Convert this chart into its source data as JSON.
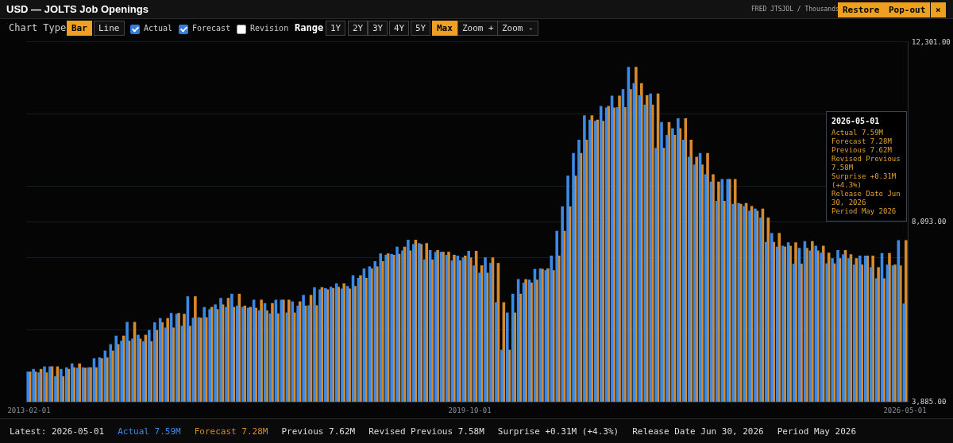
{
  "chart_data": {
    "type": "bar",
    "title": "USD — JOLTS Job Openings",
    "subtitle": "FRED JTSJOL / Thousands",
    "categories": [
      "2013-02-01",
      null,
      null,
      null,
      null,
      null,
      null,
      null,
      null,
      null,
      null,
      null,
      null,
      null,
      null,
      null,
      null,
      null,
      null,
      null,
      null,
      null,
      null,
      null,
      null,
      null,
      null,
      null,
      null,
      null,
      null,
      null,
      null,
      null,
      null,
      null,
      null,
      null,
      null,
      null,
      null,
      null,
      null,
      null,
      null,
      null,
      null,
      null,
      null,
      null,
      null,
      null,
      null,
      null,
      null,
      null,
      null,
      null,
      null,
      null,
      null,
      null,
      null,
      null,
      null,
      null,
      null,
      null,
      null,
      null,
      null,
      null,
      null,
      null,
      null,
      null,
      null,
      null,
      null,
      null,
      "2019-10-01",
      null,
      null,
      null,
      null,
      null,
      null,
      null,
      null,
      null,
      null,
      null,
      null,
      null,
      null,
      null,
      null,
      null,
      null,
      null,
      null,
      null,
      null,
      null,
      null,
      null,
      null,
      null,
      null,
      null,
      null,
      null,
      null,
      null,
      null,
      null,
      null,
      null,
      null,
      null,
      null,
      null,
      null,
      null,
      null,
      null,
      null,
      null,
      null,
      null,
      null,
      null,
      null,
      null,
      null,
      null,
      null,
      null,
      null,
      null,
      null,
      null,
      null,
      null,
      null,
      null,
      null,
      null,
      null,
      null,
      null,
      null,
      null,
      null,
      null,
      null,
      null,
      null,
      null,
      "2026-05-01"
    ],
    "series": [
      {
        "color": "#3a8ae6",
        "values": [
          4590,
          4650,
          4570,
          4710,
          4710,
          4480,
          4650,
          4690,
          4780,
          4680,
          4690,
          4690,
          4900,
          4920,
          5080,
          5230,
          5430,
          5310,
          5750,
          5360,
          5450,
          5300,
          5560,
          5740,
          5840,
          5620,
          5960,
          5940,
          5660,
          6350,
          5850,
          5860,
          6100,
          6050,
          6160,
          6310,
          6100,
          6410,
          6130,
          6100,
          6080,
          6270,
          6020,
          6190,
          5950,
          6270,
          6270,
          5970,
          6230,
          6130,
          6380,
          6140,
          6560,
          6510,
          6540,
          6570,
          6650,
          6530,
          6590,
          6840,
          6780,
          7000,
          7050,
          7170,
          7350,
          7320,
          7340,
          7510,
          7420,
          7670,
          7570,
          7590,
          7210,
          7430,
          7390,
          7390,
          7320,
          7190,
          7300,
          7260,
          7410,
          7070,
          6900,
          7260,
          7130,
          6210,
          5100,
          5970,
          6410,
          6750,
          6670,
          6740,
          6990,
          7000,
          6960,
          7300,
          7880,
          8450,
          9170,
          9700,
          10010,
          10580,
          10480,
          10450,
          10800,
          10760,
          11040,
          10770,
          11190,
          11710,
          11330,
          11050,
          10830,
          11090,
          9820,
          10420,
          10120,
          10280,
          10510,
          10010,
          9610,
          9430,
          9700,
          9200,
          9030,
          8580,
          9090,
          9090,
          8510,
          8530,
          8460,
          8350,
          8400,
          8190,
          7620,
          7830,
          7510,
          7530,
          7610,
          7110,
          7480,
          7640,
          7420,
          7530,
          7370,
          7120,
          7240,
          7430,
          7330,
          7240,
          7090,
          7300,
          7300,
          7030,
          6770,
          7360,
          7090,
          7070,
          7660,
          6180
        ]
      },
      {
        "color": "#d98a2b",
        "values": [
          4590,
          4590,
          4650,
          4570,
          4710,
          4710,
          4480,
          4650,
          4690,
          4780,
          4680,
          4690,
          4690,
          4900,
          4920,
          5080,
          5230,
          5430,
          5310,
          5750,
          5360,
          5450,
          5300,
          5560,
          5740,
          5840,
          5620,
          5960,
          5940,
          5660,
          6350,
          5850,
          5860,
          6100,
          6050,
          6160,
          6310,
          6100,
          6410,
          6130,
          6100,
          6080,
          6270,
          6020,
          6190,
          5950,
          6270,
          6270,
          5970,
          6230,
          6130,
          6380,
          6140,
          6560,
          6510,
          6540,
          6570,
          6650,
          6530,
          6590,
          6840,
          6780,
          7000,
          7050,
          7170,
          7350,
          7320,
          7340,
          7510,
          7420,
          7670,
          7570,
          7590,
          7210,
          7430,
          7390,
          7390,
          7320,
          7190,
          7300,
          7260,
          7410,
          7070,
          6900,
          7260,
          7130,
          6210,
          5100,
          5970,
          6410,
          6750,
          6670,
          6740,
          6990,
          7000,
          6960,
          7300,
          7880,
          8450,
          9170,
          9700,
          10010,
          10580,
          10480,
          10450,
          10800,
          10760,
          11040,
          10770,
          11190,
          11710,
          11330,
          11050,
          10830,
          11090,
          9820,
          10420,
          10120,
          10280,
          10510,
          10010,
          9610,
          9430,
          9700,
          9200,
          9030,
          8580,
          9090,
          9090,
          8510,
          8530,
          8460,
          8350,
          8400,
          8190,
          7620,
          7830,
          7510,
          7530,
          7610,
          7110,
          7480,
          7640,
          7420,
          7530,
          7370,
          7120,
          7240,
          7430,
          7330,
          7240,
          7090,
          7300,
          7300,
          7030,
          6770,
          7360,
          7090,
          7070,
          7660
        ]
      }
    ],
    "ylim": [
      3885,
      12301
    ],
    "yticks": [
      {
        "value": 3885,
        "label": "3,885.00"
      },
      {
        "value": 5568.2,
        "label": null
      },
      {
        "value": 7251.4,
        "label": null
      },
      {
        "value": 8093,
        "label": "8,093.00"
      },
      {
        "value": 8934.6,
        "label": null
      },
      {
        "value": 10617.8,
        "label": null
      },
      {
        "value": 12301,
        "label": "12,301.00"
      }
    ],
    "grid": "y",
    "annotations": [
      "Chart Type",
      "Bar",
      "Line",
      "Actual",
      "Forecast",
      "Revision",
      "Range",
      "1Y",
      "2Y",
      "3Y",
      "4Y",
      "5Y",
      "Max",
      "Zoom +",
      "Zoom -",
      "Restore",
      "Pop-out",
      "×",
      "2026-05-01",
      "Actual 7.59M",
      "Forecast 7.28M",
      "Previous 7.62M",
      "Revised Previous 7.58M",
      "Surprise +0.31M (+4.3%)",
      "Release Date Jun 30, 2026",
      "Period May 2026",
      "Latest: 2026-05-01",
      "Actual 7.59M",
      "Forecast 7.28M",
      "Previous 7.62M",
      "Revised Previous 7.58M",
      "Surprise +0.31M (+4.3%)",
      "Release Date Jun 30, 2026",
      "Period May 2026"
    ]
  }
}
